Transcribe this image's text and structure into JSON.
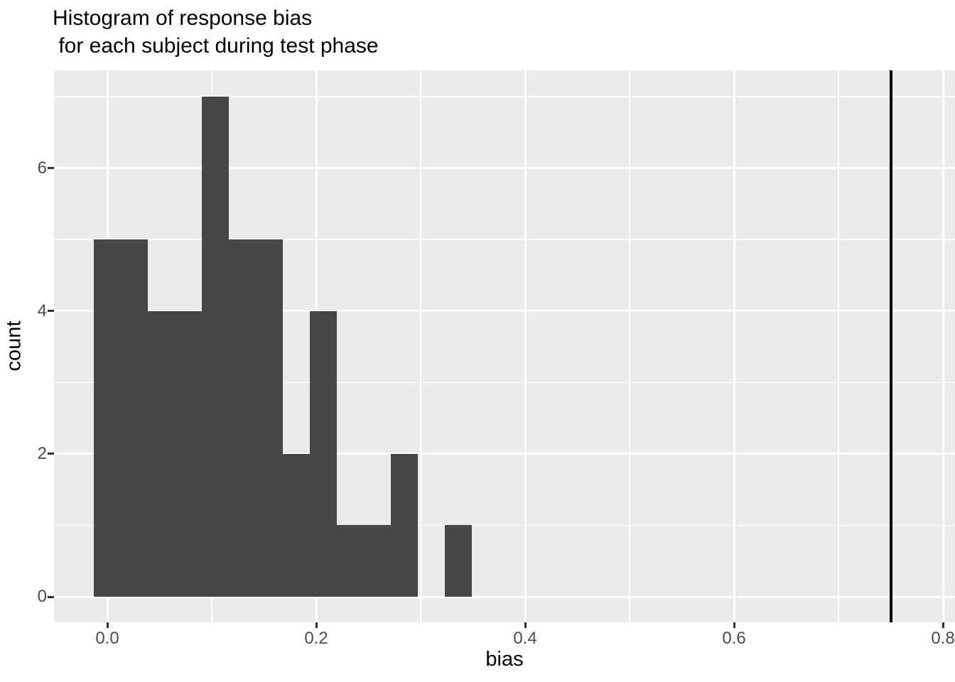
{
  "title": {
    "line1": "Histogram of response bias",
    "line2": " for each subject during test phase"
  },
  "chart_data": {
    "type": "bar",
    "subtype": "histogram",
    "title": "Histogram of response bias\n for each subject during test phase",
    "xlabel": "bias",
    "ylabel": "count",
    "xlim": [
      -0.051,
      0.812
    ],
    "ylim": [
      -0.35,
      7.35
    ],
    "grid": "on",
    "legend": "none",
    "binwidth": 0.02586,
    "bin_centers": [
      0.0,
      0.0259,
      0.0517,
      0.0776,
      0.1034,
      0.1293,
      0.1552,
      0.181,
      0.2069,
      0.2328,
      0.2586,
      0.2845,
      0.3103,
      0.3362
    ],
    "counts": [
      5,
      5,
      4,
      4,
      7,
      5,
      5,
      2,
      4,
      1,
      1,
      2,
      0,
      1
    ],
    "vline_x": 0.75,
    "x_ticks": [
      {
        "v": 0.0,
        "label": "0.0"
      },
      {
        "v": 0.2,
        "label": "0.2"
      },
      {
        "v": 0.4,
        "label": "0.4"
      },
      {
        "v": 0.6,
        "label": "0.6"
      },
      {
        "v": 0.8,
        "label": "0.8"
      }
    ],
    "x_minor_ticks": [
      0.1,
      0.3,
      0.5,
      0.7
    ],
    "y_ticks": [
      {
        "v": 0,
        "label": "0"
      },
      {
        "v": 2,
        "label": "2"
      },
      {
        "v": 4,
        "label": "4"
      },
      {
        "v": 6,
        "label": "6"
      }
    ],
    "y_minor_ticks": [
      1,
      3,
      5,
      7
    ],
    "colors": {
      "panel_background": "#EBEBEB",
      "gridline": "#FFFFFF",
      "bar_fill": "#474747",
      "vline": "#000000",
      "tick_label_text": "#4D4D4D",
      "axis_title_text": "#000000",
      "title_text": "#000000",
      "tick_mark": "#333333",
      "page_background": "#FFFFFF"
    }
  }
}
